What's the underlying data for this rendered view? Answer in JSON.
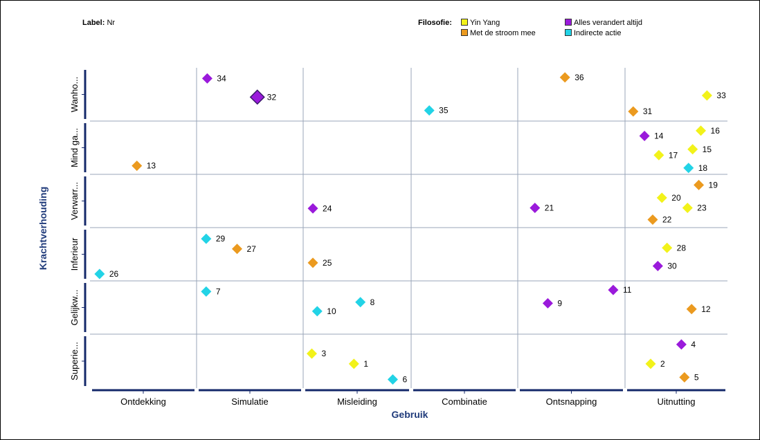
{
  "header": {
    "label_key": "Label:",
    "label_value": "Nr",
    "filosofie_key": "Filosofie:"
  },
  "legend": [
    {
      "name": "Yin Yang",
      "color": "#f2f21a"
    },
    {
      "name": "Met de stroom mee",
      "color": "#eb9a1f"
    },
    {
      "name": "Alles verandert altijd",
      "color": "#9a1adb"
    },
    {
      "name": "Indirecte actie",
      "color": "#22d3e6"
    }
  ],
  "chart_data": {
    "type": "scatter",
    "xlabel": "Gebruik",
    "ylabel": "Krachtverhouding",
    "x_categories": [
      "Ontdekking",
      "Simulatie",
      "Misleiding",
      "Combinatie",
      "Ontsnapping",
      "Uitnutting"
    ],
    "y_categories_top_to_bottom": [
      "Wanho...",
      "Mind ga...",
      "Verwarr...",
      "Inferieur",
      "Gelijkw...",
      "Superie..."
    ],
    "points": [
      {
        "label": "34",
        "x": "Simulatie",
        "y": "Wanho...",
        "series": "Alles verandert altijd",
        "dx": 0.1,
        "dy": 0.8
      },
      {
        "label": "32",
        "x": "Simulatie",
        "y": "Wanho...",
        "series": "Alles verandert altijd",
        "dx": 0.57,
        "dy": 0.45
      },
      {
        "label": "36",
        "x": "Ontsnapping",
        "y": "Wanho...",
        "series": "Met de stroom mee",
        "dx": 0.44,
        "dy": 0.82
      },
      {
        "label": "33",
        "x": "Uitnutting",
        "y": "Wanho...",
        "series": "Yin Yang",
        "dx": 0.8,
        "dy": 0.48
      },
      {
        "label": "35",
        "x": "Combinatie",
        "y": "Wanho...",
        "series": "Indirecte actie",
        "dx": 0.17,
        "dy": 0.2
      },
      {
        "label": "31",
        "x": "Uitnutting",
        "y": "Wanho...",
        "series": "Met de stroom mee",
        "dx": 0.08,
        "dy": 0.18
      },
      {
        "label": "16",
        "x": "Uitnutting",
        "y": "Mind ga...",
        "series": "Yin Yang",
        "dx": 0.74,
        "dy": 0.82
      },
      {
        "label": "14",
        "x": "Uitnutting",
        "y": "Mind ga...",
        "series": "Alles verandert altijd",
        "dx": 0.19,
        "dy": 0.72
      },
      {
        "label": "15",
        "x": "Uitnutting",
        "y": "Mind ga...",
        "series": "Yin Yang",
        "dx": 0.66,
        "dy": 0.47
      },
      {
        "label": "17",
        "x": "Uitnutting",
        "y": "Mind ga...",
        "series": "Yin Yang",
        "dx": 0.33,
        "dy": 0.36
      },
      {
        "label": "13",
        "x": "Ontdekking",
        "y": "Mind ga...",
        "series": "Met de stroom mee",
        "dx": 0.44,
        "dy": 0.16
      },
      {
        "label": "18",
        "x": "Uitnutting",
        "y": "Mind ga...",
        "series": "Indirecte actie",
        "dx": 0.62,
        "dy": 0.12
      },
      {
        "label": "19",
        "x": "Uitnutting",
        "y": "Verwarr...",
        "series": "Met de stroom mee",
        "dx": 0.72,
        "dy": 0.8
      },
      {
        "label": "20",
        "x": "Uitnutting",
        "y": "Verwarr...",
        "series": "Yin Yang",
        "dx": 0.36,
        "dy": 0.56
      },
      {
        "label": "24",
        "x": "Misleiding",
        "y": "Verwarr...",
        "series": "Alles verandert altijd",
        "dx": 0.09,
        "dy": 0.36
      },
      {
        "label": "21",
        "x": "Ontsnapping",
        "y": "Verwarr...",
        "series": "Alles verandert altijd",
        "dx": 0.16,
        "dy": 0.37
      },
      {
        "label": "23",
        "x": "Uitnutting",
        "y": "Verwarr...",
        "series": "Yin Yang",
        "dx": 0.61,
        "dy": 0.37
      },
      {
        "label": "22",
        "x": "Uitnutting",
        "y": "Verwarr...",
        "series": "Met de stroom mee",
        "dx": 0.27,
        "dy": 0.15
      },
      {
        "label": "29",
        "x": "Simulatie",
        "y": "Inferieur",
        "series": "Indirecte actie",
        "dx": 0.09,
        "dy": 0.79
      },
      {
        "label": "28",
        "x": "Uitnutting",
        "y": "Inferieur",
        "series": "Yin Yang",
        "dx": 0.41,
        "dy": 0.62
      },
      {
        "label": "27",
        "x": "Simulatie",
        "y": "Inferieur",
        "series": "Met de stroom mee",
        "dx": 0.38,
        "dy": 0.6
      },
      {
        "label": "25",
        "x": "Misleiding",
        "y": "Inferieur",
        "series": "Met de stroom mee",
        "dx": 0.09,
        "dy": 0.34
      },
      {
        "label": "30",
        "x": "Uitnutting",
        "y": "Inferieur",
        "series": "Alles verandert altijd",
        "dx": 0.32,
        "dy": 0.28
      },
      {
        "label": "26",
        "x": "Ontdekking",
        "y": "Inferieur",
        "series": "Indirecte actie",
        "dx": 0.09,
        "dy": 0.13
      },
      {
        "label": "11",
        "x": "Ontsnapping",
        "y": "Gelijkw...",
        "series": "Alles verandert altijd",
        "dx": 0.89,
        "dy": 0.83
      },
      {
        "label": "7",
        "x": "Simulatie",
        "y": "Gelijkw...",
        "series": "Indirecte actie",
        "dx": 0.09,
        "dy": 0.8
      },
      {
        "label": "8",
        "x": "Misleiding",
        "y": "Gelijkw...",
        "series": "Indirecte actie",
        "dx": 0.53,
        "dy": 0.6
      },
      {
        "label": "9",
        "x": "Ontsnapping",
        "y": "Gelijkw...",
        "series": "Alles verandert altijd",
        "dx": 0.28,
        "dy": 0.58
      },
      {
        "label": "12",
        "x": "Uitnutting",
        "y": "Gelijkw...",
        "series": "Met de stroom mee",
        "dx": 0.65,
        "dy": 0.47
      },
      {
        "label": "10",
        "x": "Misleiding",
        "y": "Gelijkw...",
        "series": "Indirecte actie",
        "dx": 0.13,
        "dy": 0.43
      },
      {
        "label": "4",
        "x": "Uitnutting",
        "y": "Superie...",
        "series": "Alles verandert altijd",
        "dx": 0.55,
        "dy": 0.81
      },
      {
        "label": "3",
        "x": "Misleiding",
        "y": "Superie...",
        "series": "Yin Yang",
        "dx": 0.08,
        "dy": 0.64
      },
      {
        "label": "1",
        "x": "Misleiding",
        "y": "Superie...",
        "series": "Yin Yang",
        "dx": 0.47,
        "dy": 0.45
      },
      {
        "label": "2",
        "x": "Uitnutting",
        "y": "Superie...",
        "series": "Yin Yang",
        "dx": 0.25,
        "dy": 0.45
      },
      {
        "label": "5",
        "x": "Uitnutting",
        "y": "Superie...",
        "series": "Met de stroom mee",
        "dx": 0.58,
        "dy": 0.2
      },
      {
        "label": "6",
        "x": "Misleiding",
        "y": "Superie...",
        "series": "Indirecte actie",
        "dx": 0.83,
        "dy": 0.16
      }
    ],
    "highlighted_label": "32",
    "grid": true,
    "legend_position": "top-right"
  }
}
